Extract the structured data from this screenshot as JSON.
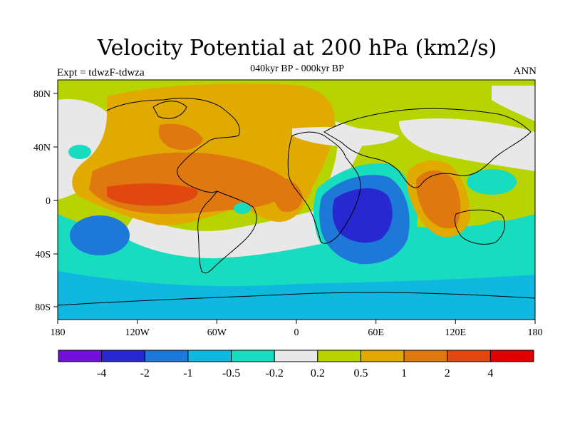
{
  "title": "Velocity Potential at 200 hPa (km2/s)",
  "subtitle": "040kyr BP - 000kyr BP",
  "left_label": "Expt = tdwzF-tdwza",
  "right_label": "ANN",
  "axes": {
    "x_ticks": [
      "180",
      "120W",
      "60W",
      "0",
      "60E",
      "120E",
      "180"
    ],
    "y_ticks": [
      "80N",
      "40N",
      "0",
      "40S",
      "80S"
    ]
  },
  "colorbar": {
    "colors": [
      "#7010d8",
      "#2828d0",
      "#1e78d8",
      "#10b8e0",
      "#18dcc0",
      "#e8e8e8",
      "#b8d400",
      "#e0aa00",
      "#e07810",
      "#e04810",
      "#e00000"
    ],
    "labels": [
      "-4",
      "-2",
      "-1",
      "-0.5",
      "-0.2",
      "0.2",
      "0.5",
      "1",
      "2",
      "4"
    ]
  }
}
